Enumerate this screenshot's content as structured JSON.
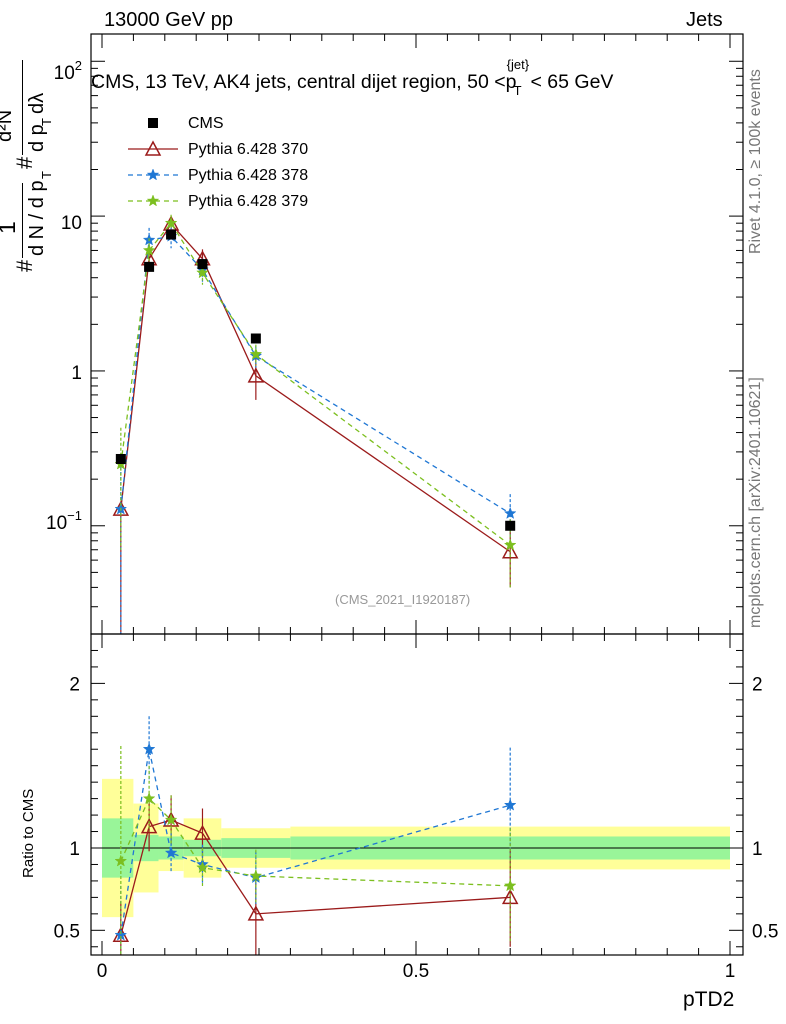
{
  "header": {
    "left": "13000 GeV pp",
    "right": "Jets"
  },
  "plot_title": {
    "main": "CMS, 13 TeV, AK4 jets, central dijet region, 50 <",
    "p": "p",
    "sub": "T",
    "sup": "{jet}",
    "tail": "< 65 GeV"
  },
  "ylabel_main": {
    "one": "1",
    "sharp": "#",
    "frac1_num": "#",
    "dN": "d N / d p",
    "T": "T",
    "frac2_num": "d²N",
    "frac2_den": "d p",
    "frac2_den_T": "T",
    "lambda": "dλ"
  },
  "side_labels": {
    "rivet": "Rivet 4.1.0, ≥ 100k events",
    "mcplots": "mcplots.cern.ch [arXiv:2401.10621]"
  },
  "watermark": "(CMS_2021_I1920187)",
  "xlabel": "pTD2",
  "ratio_ylabel": "Ratio to CMS",
  "legend": [
    {
      "name": "CMS",
      "color": "#000000"
    },
    {
      "name": "Pythia 6.428 370",
      "color": "#9b1b1b"
    },
    {
      "name": "Pythia 6.428 378",
      "color": "#1f77d4"
    },
    {
      "name": "Pythia 6.428 379",
      "color": "#7cbf1f"
    }
  ],
  "chart_data": {
    "type": "line",
    "title": "CMS, 13 TeV, AK4 jets, central dijet region, 50 < p_T^{jet} < 65 GeV",
    "xlabel": "pTD2",
    "ylabel": "1/dN/dp_T dN^2/dp_T dλ",
    "xlim": [
      0,
      1
    ],
    "ylim_main": [
      0.02,
      150
    ],
    "ylim_ratio": [
      0.35,
      2.3
    ],
    "yscale_main": "log",
    "x_ticks": [
      "0",
      "0.5",
      "1"
    ],
    "y_ticks_main": [
      "10^-1",
      "1",
      "10",
      "10^2"
    ],
    "y_ticks_ratio": [
      "0.5",
      "1",
      "2"
    ],
    "bins": [
      [
        0,
        0.05
      ],
      [
        0.05,
        0.09
      ],
      [
        0.09,
        0.13
      ],
      [
        0.13,
        0.19
      ],
      [
        0.19,
        0.3
      ],
      [
        0.3,
        1.0
      ]
    ],
    "x": [
      0.03,
      0.075,
      0.11,
      0.16,
      0.245,
      0.65
    ],
    "data": {
      "name": "CMS",
      "values": [
        0.27,
        4.7,
        7.6,
        4.9,
        1.62,
        0.1
      ],
      "band_stat": [
        0.18,
        0.08,
        0.07,
        0.05,
        0.06,
        0.07
      ],
      "band_total": [
        0.42,
        0.27,
        0.14,
        0.18,
        0.12,
        0.13
      ]
    },
    "series": [
      {
        "name": "Pythia 6.428 370",
        "values": [
          0.128,
          5.3,
          8.9,
          5.3,
          0.93,
          0.068
        ],
        "err_low": [
          0.128,
          0.9,
          1.1,
          0.8,
          0.28,
          0.028
        ],
        "err_high": [
          0.0,
          0.9,
          1.1,
          0.8,
          0.28,
          0.028
        ],
        "ratio": [
          0.47,
          1.13,
          1.17,
          1.09,
          0.6,
          0.7
        ],
        "ratio_err": [
          0.2,
          0.15,
          0.15,
          0.15,
          0.25,
          0.3
        ]
      },
      {
        "name": "Pythia 6.428 378",
        "values": [
          0.128,
          7.0,
          7.4,
          4.5,
          1.25,
          0.12
        ],
        "err_low": [
          0.128,
          1.4,
          1.2,
          0.8,
          0.2,
          0.04
        ],
        "err_high": [
          0.13,
          1.4,
          1.2,
          0.8,
          0.2,
          0.04
        ],
        "ratio": [
          0.47,
          1.6,
          0.97,
          0.9,
          0.82,
          1.26
        ],
        "ratio_err": [
          0.3,
          0.2,
          0.12,
          0.12,
          0.16,
          0.35
        ]
      },
      {
        "name": "Pythia 6.428 379",
        "values": [
          0.25,
          6.0,
          9.0,
          4.3,
          1.28,
          0.075
        ],
        "err_low": [
          0.18,
          1.2,
          1.2,
          0.7,
          0.2,
          0.035
        ],
        "err_high": [
          0.18,
          1.2,
          1.2,
          0.7,
          0.2,
          0.035
        ],
        "ratio": [
          0.92,
          1.3,
          1.17,
          0.88,
          0.83,
          0.77
        ],
        "ratio_err": [
          0.7,
          0.2,
          0.15,
          0.12,
          0.16,
          0.35
        ]
      }
    ]
  }
}
